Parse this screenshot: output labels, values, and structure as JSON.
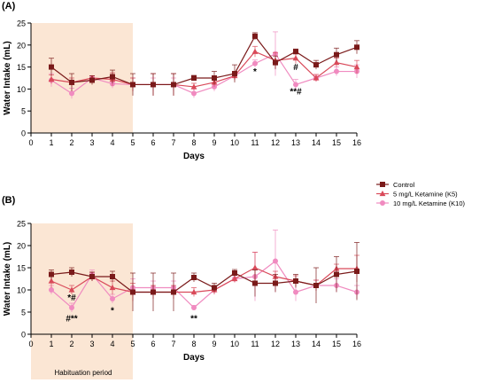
{
  "figure": {
    "colors": {
      "control": "#7a1a1a",
      "k5": "#d94a5a",
      "k10": "#f08bc0",
      "habituation_fill": "#fbe6d4",
      "axis": "#000000"
    },
    "legend": {
      "placement": "right",
      "entries": [
        {
          "key": "control",
          "label": "Control",
          "marker": "square"
        },
        {
          "key": "k5",
          "label": "5 mg/L Ketamine (K5)",
          "marker": "triangle"
        },
        {
          "key": "k10",
          "label": "10 mg/L Ketamine (K10)",
          "marker": "circle"
        }
      ]
    },
    "habituation_label": "Habituation period"
  },
  "chart_data": [
    {
      "type": "line",
      "panel_label": "(A)",
      "xlabel": "Days",
      "ylabel": "Water Intake (mL)",
      "xlim": [
        0,
        16
      ],
      "ylim": [
        0,
        25
      ],
      "xticks": [
        0,
        1,
        2,
        3,
        4,
        5,
        6,
        7,
        8,
        9,
        10,
        11,
        12,
        13,
        14,
        15,
        16
      ],
      "yticks": [
        0,
        5,
        10,
        15,
        20,
        25
      ],
      "shaded_region": [
        0,
        5
      ],
      "x": [
        1,
        2,
        3,
        4,
        5,
        6,
        7,
        8,
        9,
        10,
        11,
        12,
        13,
        14,
        15,
        16
      ],
      "series": [
        {
          "key": "control",
          "name": "Control",
          "values": [
            15,
            11.5,
            12,
            12.8,
            11,
            11,
            11,
            12.5,
            12.5,
            13.5,
            22,
            16,
            18.5,
            15.5,
            17.8,
            19.5
          ],
          "errors": [
            2,
            2,
            1,
            1.5,
            2.5,
            2.5,
            2.5,
            0.6,
            1.5,
            2,
            0.8,
            1.5,
            0.6,
            1,
            1.5,
            1.5
          ]
        },
        {
          "key": "k5",
          "name": "5 mg/L Ketamine (K5)",
          "values": [
            12.2,
            11.5,
            12.5,
            12.2,
            11,
            11,
            11,
            10.5,
            11.5,
            13,
            18.5,
            16.5,
            17,
            12.5,
            16,
            15
          ],
          "errors": [
            1,
            1,
            0.5,
            1.5,
            1.5,
            2.5,
            2.5,
            0.8,
            1,
            1,
            1.2,
            1.8,
            1.2,
            0.8,
            1,
            1.5
          ]
        },
        {
          "key": "k10",
          "name": "10 mg/L Ketamine (K10)",
          "values": [
            12,
            9,
            12.5,
            11.2,
            11,
            11,
            11,
            9,
            10.5,
            13,
            15.8,
            18,
            11,
            12.5,
            14,
            14
          ],
          "errors": [
            1.5,
            1.2,
            0.5,
            1,
            1.5,
            1.5,
            1.5,
            1,
            1,
            1,
            0.8,
            5,
            1.2,
            0.8,
            1,
            1.5
          ]
        }
      ],
      "annotations": [
        {
          "x": 11,
          "y": 13.3,
          "text": "*"
        },
        {
          "x": 13,
          "y": 14.3,
          "text": "#"
        },
        {
          "x": 13,
          "y": 8.8,
          "text": "**#"
        }
      ]
    },
    {
      "type": "line",
      "panel_label": "(B)",
      "xlabel": "Days",
      "ylabel": "Water Intake (mL)",
      "xlim": [
        0,
        16
      ],
      "ylim": [
        0,
        25
      ],
      "xticks": [
        0,
        1,
        2,
        3,
        4,
        5,
        6,
        7,
        8,
        9,
        10,
        11,
        12,
        13,
        14,
        15,
        16
      ],
      "yticks": [
        0,
        5,
        10,
        15,
        20,
        25
      ],
      "shaded_region": [
        0,
        5
      ],
      "x": [
        1,
        2,
        3,
        4,
        5,
        6,
        7,
        8,
        9,
        10,
        11,
        12,
        13,
        14,
        15,
        16
      ],
      "series": [
        {
          "key": "control",
          "name": "Control",
          "values": [
            13.5,
            14,
            13,
            13,
            9.5,
            9.5,
            9.5,
            12.8,
            10.5,
            13.8,
            11.5,
            11.5,
            12,
            11,
            13.5,
            14.2
          ],
          "errors": [
            1,
            1,
            1,
            1.2,
            4.3,
            4.3,
            4.3,
            1,
            1,
            0.8,
            3,
            2,
            1.5,
            4,
            4,
            6.5
          ]
        },
        {
          "key": "k5",
          "name": "5 mg/L Ketamine (K5)",
          "values": [
            12,
            10,
            13,
            10.5,
            9.5,
            9.5,
            9.5,
            9.5,
            10,
            12.5,
            15,
            13,
            12,
            11,
            14.8,
            14.8
          ],
          "errors": [
            1.5,
            1,
            1,
            1.5,
            2,
            1.5,
            1.5,
            1,
            1,
            0.8,
            3.5,
            1.2,
            1.2,
            1.2,
            1,
            3
          ]
        },
        {
          "key": "k10",
          "name": "10 mg/L Ketamine (K10)",
          "values": [
            10,
            6,
            13.5,
            8,
            10.5,
            10.5,
            10.5,
            6,
            10,
            12.5,
            13,
            16.5,
            9.5,
            11,
            11,
            9.5
          ],
          "errors": [
            1,
            1,
            1,
            1,
            2,
            1.5,
            1.5,
            0.5,
            1,
            0.8,
            5.5,
            7,
            2,
            1.2,
            1.5,
            1.5
          ]
        }
      ],
      "annotations": [
        {
          "x": 2,
          "y": 7.6,
          "text": "*#"
        },
        {
          "x": 2,
          "y": 2.9,
          "text": "#**"
        },
        {
          "x": 4,
          "y": 4.7,
          "text": "*"
        },
        {
          "x": 8,
          "y": 2.9,
          "text": "**"
        }
      ]
    }
  ]
}
